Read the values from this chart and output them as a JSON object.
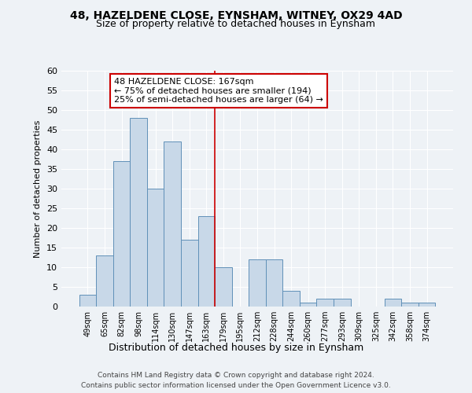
{
  "title": "48, HAZELDENE CLOSE, EYNSHAM, WITNEY, OX29 4AD",
  "subtitle": "Size of property relative to detached houses in Eynsham",
  "bar_labels": [
    "49sqm",
    "65sqm",
    "82sqm",
    "98sqm",
    "114sqm",
    "130sqm",
    "147sqm",
    "163sqm",
    "179sqm",
    "195sqm",
    "212sqm",
    "228sqm",
    "244sqm",
    "260sqm",
    "277sqm",
    "293sqm",
    "309sqm",
    "325sqm",
    "342sqm",
    "358sqm",
    "374sqm"
  ],
  "bar_values": [
    3,
    13,
    37,
    48,
    30,
    42,
    17,
    23,
    10,
    0,
    12,
    12,
    4,
    1,
    2,
    2,
    0,
    0,
    2,
    1,
    1
  ],
  "bar_color": "#c8d8e8",
  "bar_edge_color": "#6090b8",
  "ylabel": "Number of detached properties",
  "xlabel": "Distribution of detached houses by size in Eynsham",
  "ylim": [
    0,
    60
  ],
  "yticks": [
    0,
    5,
    10,
    15,
    20,
    25,
    30,
    35,
    40,
    45,
    50,
    55,
    60
  ],
  "vline_x": 7.5,
  "vline_color": "#cc0000",
  "annotation_title": "48 HAZELDENE CLOSE: 167sqm",
  "annotation_line1": "← 75% of detached houses are smaller (194)",
  "annotation_line2": "25% of semi-detached houses are larger (64) →",
  "annotation_box_color": "#cc0000",
  "annotation_box_fill": "#ffffff",
  "footer_line1": "Contains HM Land Registry data © Crown copyright and database right 2024.",
  "footer_line2": "Contains public sector information licensed under the Open Government Licence v3.0.",
  "bg_color": "#eef2f6",
  "grid_color": "#ffffff",
  "title_fontsize": 10,
  "subtitle_fontsize": 9
}
